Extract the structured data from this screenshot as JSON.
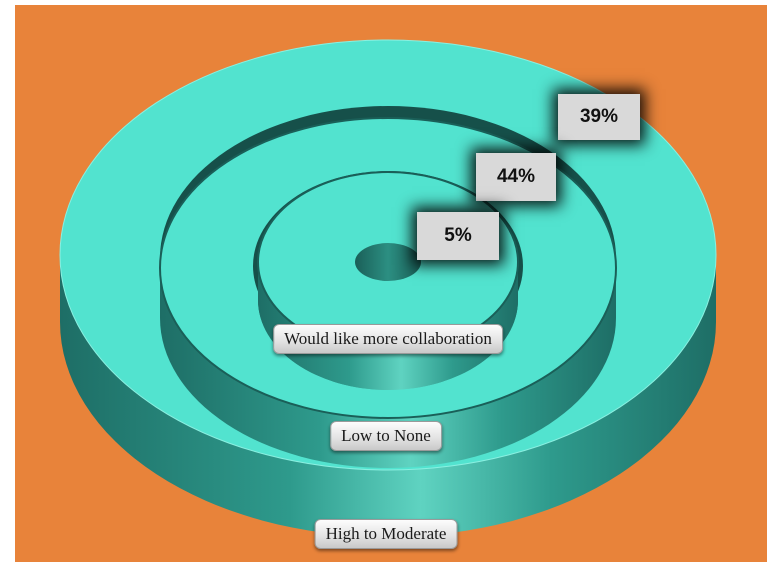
{
  "chart_data": {
    "type": "concentric-rings",
    "rings": [
      {
        "label": "High to Moderate",
        "value": 39,
        "display": "39%"
      },
      {
        "label": "Low to None",
        "value": 44,
        "display": "44%"
      },
      {
        "label": "Would like more collaboration",
        "value": 5,
        "display": "5%"
      }
    ]
  },
  "colors": {
    "background": "#E8833A",
    "ring_top": "#52E3CF",
    "ring_side_dark": "#1E6E66",
    "ring_side_light": "#3FB8A7",
    "value_box": "#D9D9D9"
  }
}
